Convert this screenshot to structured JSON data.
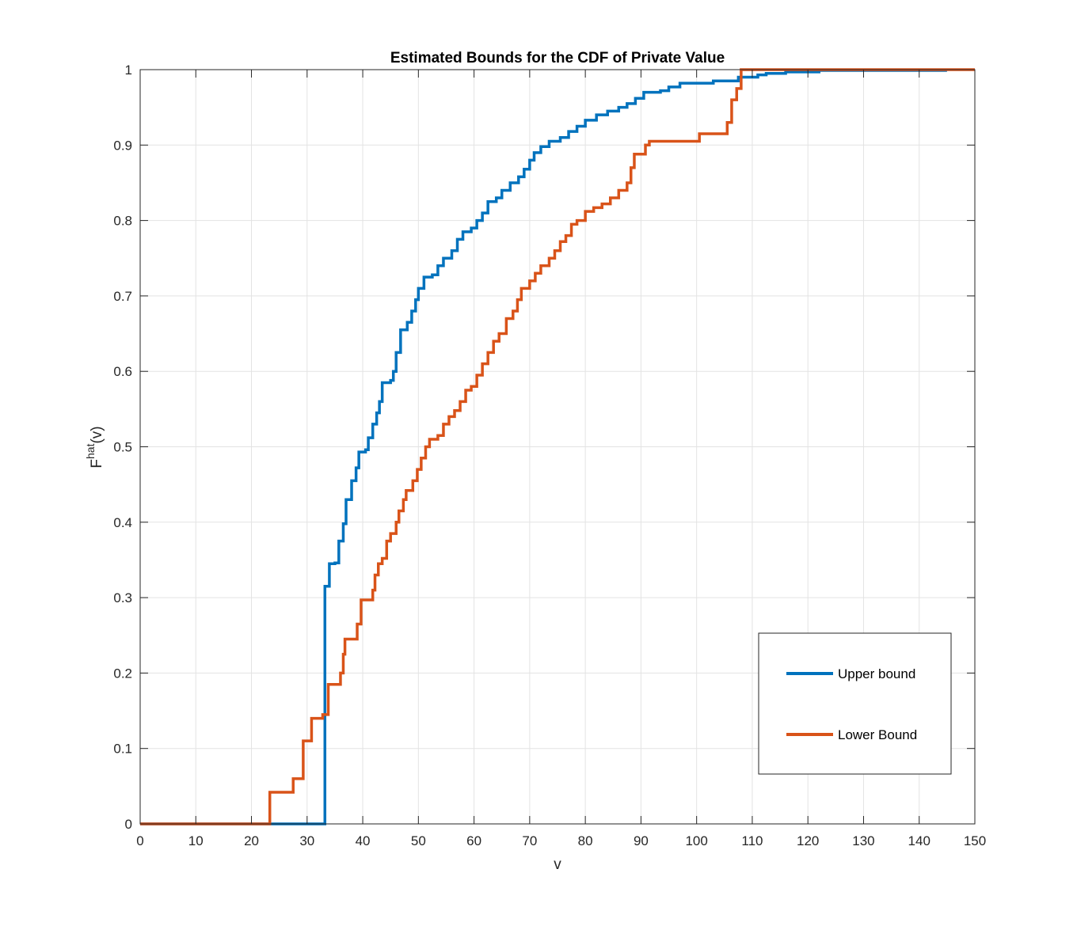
{
  "chart_data": {
    "type": "line",
    "title": "Estimated Bounds for the CDF of Private Value",
    "xlabel": "v",
    "ylabel": "F",
    "ylabel_sup": "hat",
    "ylabel_suffix": "(v)",
    "xlim": [
      0,
      150
    ],
    "ylim": [
      0,
      1
    ],
    "xticks": [
      0,
      10,
      20,
      30,
      40,
      50,
      60,
      70,
      80,
      90,
      100,
      110,
      120,
      130,
      140,
      150
    ],
    "yticks": [
      0,
      0.1,
      0.2,
      0.3,
      0.4,
      0.5,
      0.6,
      0.7,
      0.8,
      0.9,
      1
    ],
    "grid": true,
    "legend_position": "bottom-right",
    "series": [
      {
        "name": "Upper bound",
        "color": "#0072BD",
        "step": true,
        "points": [
          [
            0,
            0
          ],
          [
            33.2,
            0
          ],
          [
            33.2,
            0.315
          ],
          [
            34,
            0.345
          ],
          [
            35,
            0.346
          ],
          [
            35.7,
            0.375
          ],
          [
            36.5,
            0.398
          ],
          [
            37,
            0.43
          ],
          [
            38,
            0.455
          ],
          [
            38.8,
            0.472
          ],
          [
            39.3,
            0.493
          ],
          [
            40.5,
            0.496
          ],
          [
            41,
            0.512
          ],
          [
            41.8,
            0.53
          ],
          [
            42.5,
            0.545
          ],
          [
            43,
            0.56
          ],
          [
            43.5,
            0.585
          ],
          [
            45,
            0.588
          ],
          [
            45.5,
            0.6
          ],
          [
            46,
            0.625
          ],
          [
            46.8,
            0.655
          ],
          [
            48,
            0.665
          ],
          [
            48.8,
            0.68
          ],
          [
            49.5,
            0.695
          ],
          [
            50,
            0.71
          ],
          [
            51,
            0.725
          ],
          [
            52.5,
            0.728
          ],
          [
            53.5,
            0.74
          ],
          [
            54.5,
            0.75
          ],
          [
            56,
            0.76
          ],
          [
            57,
            0.775
          ],
          [
            58,
            0.785
          ],
          [
            59.5,
            0.79
          ],
          [
            60.5,
            0.8
          ],
          [
            61.5,
            0.81
          ],
          [
            62.5,
            0.825
          ],
          [
            64,
            0.83
          ],
          [
            65,
            0.84
          ],
          [
            66.5,
            0.85
          ],
          [
            68,
            0.858
          ],
          [
            69,
            0.868
          ],
          [
            70,
            0.88
          ],
          [
            70.8,
            0.89
          ],
          [
            72,
            0.898
          ],
          [
            73.5,
            0.905
          ],
          [
            75.5,
            0.91
          ],
          [
            77,
            0.918
          ],
          [
            78.5,
            0.925
          ],
          [
            80,
            0.933
          ],
          [
            82,
            0.94
          ],
          [
            84,
            0.945
          ],
          [
            86,
            0.95
          ],
          [
            87.5,
            0.955
          ],
          [
            89,
            0.962
          ],
          [
            90.5,
            0.97
          ],
          [
            93.5,
            0.972
          ],
          [
            95,
            0.977
          ],
          [
            97,
            0.982
          ],
          [
            103,
            0.985
          ],
          [
            107.5,
            0.99
          ],
          [
            111,
            0.993
          ],
          [
            112.5,
            0.995
          ],
          [
            116,
            0.997
          ],
          [
            122,
            0.999
          ],
          [
            145,
            0.999
          ]
        ]
      },
      {
        "name": "Lower Bound",
        "color": "#D95319",
        "step": true,
        "points": [
          [
            0,
            0
          ],
          [
            23.3,
            0
          ],
          [
            23.3,
            0.042
          ],
          [
            27.5,
            0.06
          ],
          [
            29.3,
            0.11
          ],
          [
            30.8,
            0.14
          ],
          [
            32.8,
            0.145
          ],
          [
            33.8,
            0.185
          ],
          [
            36,
            0.2
          ],
          [
            36.5,
            0.225
          ],
          [
            36.8,
            0.245
          ],
          [
            39,
            0.265
          ],
          [
            39.7,
            0.297
          ],
          [
            41.8,
            0.31
          ],
          [
            42.2,
            0.33
          ],
          [
            42.8,
            0.345
          ],
          [
            43.5,
            0.352
          ],
          [
            44.3,
            0.375
          ],
          [
            45,
            0.385
          ],
          [
            46,
            0.4
          ],
          [
            46.5,
            0.415
          ],
          [
            47.3,
            0.43
          ],
          [
            47.8,
            0.442
          ],
          [
            49,
            0.455
          ],
          [
            49.8,
            0.47
          ],
          [
            50.5,
            0.485
          ],
          [
            51.3,
            0.5
          ],
          [
            52,
            0.51
          ],
          [
            53.5,
            0.515
          ],
          [
            54.5,
            0.53
          ],
          [
            55.5,
            0.54
          ],
          [
            56.5,
            0.548
          ],
          [
            57.5,
            0.56
          ],
          [
            58.5,
            0.575
          ],
          [
            59.5,
            0.58
          ],
          [
            60.5,
            0.595
          ],
          [
            61.5,
            0.61
          ],
          [
            62.5,
            0.625
          ],
          [
            63.5,
            0.64
          ],
          [
            64.5,
            0.65
          ],
          [
            65.8,
            0.67
          ],
          [
            67,
            0.68
          ],
          [
            67.8,
            0.695
          ],
          [
            68.5,
            0.71
          ],
          [
            70,
            0.72
          ],
          [
            71,
            0.73
          ],
          [
            72,
            0.74
          ],
          [
            73.5,
            0.75
          ],
          [
            74.5,
            0.76
          ],
          [
            75.5,
            0.772
          ],
          [
            76.5,
            0.78
          ],
          [
            77.5,
            0.795
          ],
          [
            78.5,
            0.8
          ],
          [
            80,
            0.812
          ],
          [
            81.5,
            0.817
          ],
          [
            83,
            0.822
          ],
          [
            84.5,
            0.83
          ],
          [
            86,
            0.84
          ],
          [
            87.5,
            0.85
          ],
          [
            88.2,
            0.87
          ],
          [
            88.8,
            0.888
          ],
          [
            90.8,
            0.9
          ],
          [
            91.5,
            0.905
          ],
          [
            100.5,
            0.915
          ],
          [
            105.5,
            0.93
          ],
          [
            106.3,
            0.96
          ],
          [
            107.2,
            0.975
          ],
          [
            108,
            1
          ],
          [
            150,
            1
          ]
        ]
      }
    ]
  }
}
